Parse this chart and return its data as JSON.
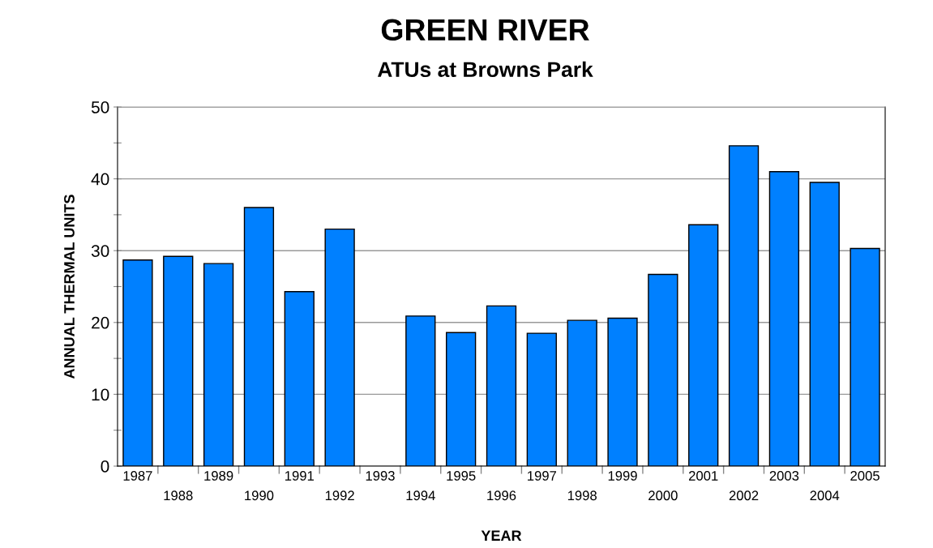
{
  "chart_data": {
    "type": "bar",
    "title": "GREEN RIVER",
    "subtitle": "ATUs at Browns Park",
    "xlabel": "YEAR",
    "ylabel": "ANNUAL THERMAL UNITS",
    "categories": [
      "1987",
      "1988",
      "1989",
      "1990",
      "1991",
      "1992",
      "1993",
      "1994",
      "1995",
      "1996",
      "1997",
      "1998",
      "1999",
      "2000",
      "2001",
      "2002",
      "2003",
      "2004",
      "2005"
    ],
    "values": [
      28.7,
      29.2,
      28.2,
      36.0,
      24.3,
      33.0,
      null,
      20.9,
      18.6,
      22.3,
      18.5,
      20.3,
      20.6,
      26.7,
      33.6,
      44.6,
      41.0,
      39.5,
      30.3
    ],
    "color": "#0080ff",
    "ylim": [
      0,
      50
    ],
    "yticks": [
      0,
      {
        "value": 5,
        "label": null
      },
      10,
      {
        "value": 15,
        "label": null
      },
      20,
      {
        "value": 25,
        "label": null
      },
      30,
      {
        "value": 35,
        "label": null
      },
      40,
      {
        "value": 45,
        "label": null
      },
      50
    ],
    "grid": "y",
    "legend": false
  }
}
